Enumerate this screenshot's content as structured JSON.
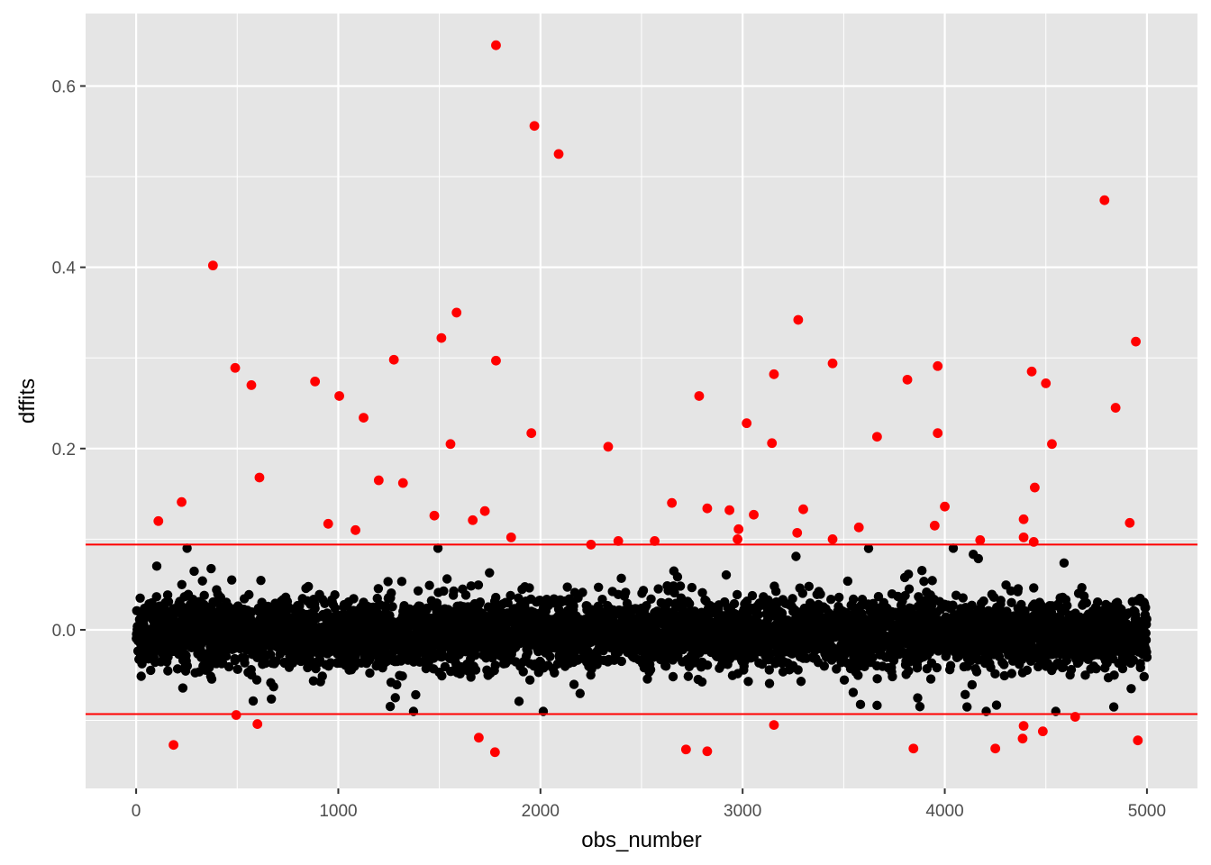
{
  "chart_data": {
    "type": "scatter",
    "title": "",
    "xlabel": "obs_number",
    "ylabel": "dffits",
    "xlim": [
      -250,
      5250
    ],
    "ylim": [
      -0.175,
      0.68
    ],
    "x_ticks": [
      0,
      1000,
      2000,
      3000,
      4000,
      5000
    ],
    "x_tick_labels": [
      "0",
      "1000",
      "2000",
      "3000",
      "4000",
      "5000"
    ],
    "y_ticks": [
      0.0,
      0.2,
      0.4,
      0.6
    ],
    "y_tick_labels": [
      "0.0",
      "0.2",
      "0.4",
      "0.6"
    ],
    "grid": true,
    "background": "#e5e5e5",
    "threshold_lines": {
      "values": [
        0.094,
        -0.093
      ],
      "color": "#ff0000"
    },
    "bulk_series": {
      "color": "#000000",
      "n": 5000,
      "x_range": [
        1,
        5000
      ],
      "y_range": [
        -0.09,
        0.09
      ]
    },
    "series": [
      {
        "color": "#ff0000",
        "points": [
          [
            1780,
            0.645
          ],
          [
            1970,
            0.556
          ],
          [
            2090,
            0.525
          ],
          [
            4790,
            0.474
          ],
          [
            380,
            0.402
          ],
          [
            1585,
            0.35
          ],
          [
            3275,
            0.342
          ],
          [
            1510,
            0.322
          ],
          [
            4945,
            0.318
          ],
          [
            1275,
            0.298
          ],
          [
            1780,
            0.297
          ],
          [
            3445,
            0.294
          ],
          [
            3965,
            0.291
          ],
          [
            490,
            0.289
          ],
          [
            4430,
            0.285
          ],
          [
            3155,
            0.282
          ],
          [
            3815,
            0.276
          ],
          [
            885,
            0.274
          ],
          [
            4500,
            0.272
          ],
          [
            570,
            0.27
          ],
          [
            1005,
            0.258
          ],
          [
            2785,
            0.258
          ],
          [
            4845,
            0.245
          ],
          [
            1125,
            0.234
          ],
          [
            3020,
            0.228
          ],
          [
            1955,
            0.217
          ],
          [
            3965,
            0.217
          ],
          [
            3665,
            0.213
          ],
          [
            3145,
            0.206
          ],
          [
            1555,
            0.205
          ],
          [
            4530,
            0.205
          ],
          [
            2335,
            0.202
          ],
          [
            610,
            0.168
          ],
          [
            1200,
            0.165
          ],
          [
            1320,
            0.162
          ],
          [
            4445,
            0.157
          ],
          [
            225,
            0.141
          ],
          [
            2650,
            0.14
          ],
          [
            4000,
            0.136
          ],
          [
            2825,
            0.134
          ],
          [
            3300,
            0.133
          ],
          [
            2935,
            0.132
          ],
          [
            1725,
            0.131
          ],
          [
            3055,
            0.127
          ],
          [
            1475,
            0.126
          ],
          [
            4390,
            0.122
          ],
          [
            1665,
            0.121
          ],
          [
            110,
            0.12
          ],
          [
            4915,
            0.118
          ],
          [
            950,
            0.117
          ],
          [
            3950,
            0.115
          ],
          [
            3575,
            0.113
          ],
          [
            2980,
            0.111
          ],
          [
            1085,
            0.11
          ],
          [
            3270,
            0.107
          ],
          [
            1855,
            0.102
          ],
          [
            4390,
            0.102
          ],
          [
            2975,
            0.1
          ],
          [
            3445,
            0.1
          ],
          [
            4175,
            0.099
          ],
          [
            2385,
            0.098
          ],
          [
            2565,
            0.098
          ],
          [
            4440,
            0.097
          ],
          [
            2250,
            0.094
          ],
          [
            495,
            -0.094
          ],
          [
            4645,
            -0.096
          ],
          [
            600,
            -0.104
          ],
          [
            3155,
            -0.105
          ],
          [
            4390,
            -0.106
          ],
          [
            4485,
            -0.112
          ],
          [
            4385,
            -0.12
          ],
          [
            1695,
            -0.119
          ],
          [
            4955,
            -0.122
          ],
          [
            185,
            -0.127
          ],
          [
            3845,
            -0.131
          ],
          [
            2720,
            -0.132
          ],
          [
            4250,
            -0.131
          ],
          [
            1775,
            -0.135
          ],
          [
            2825,
            -0.134
          ]
        ]
      }
    ]
  }
}
